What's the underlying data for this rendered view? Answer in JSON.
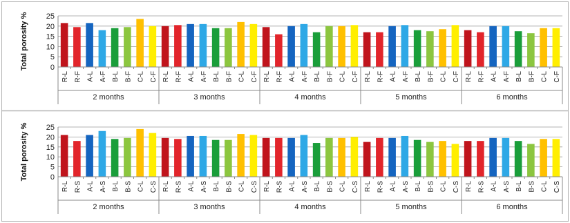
{
  "colors": {
    "R": "#c0141c",
    "red2": "#e2252b",
    "A": "#1565c0",
    "A2": "#2ea8e6",
    "B": "#1a9e3a",
    "B2": "#8cc63f",
    "C": "#ffc000",
    "C2": "#ffee00"
  },
  "chart_data": [
    {
      "type": "bar",
      "ylabel": "Total porosity  %",
      "ylim": [
        0,
        25
      ],
      "yticks": [
        0,
        5,
        10,
        15,
        20,
        25
      ],
      "grid": true,
      "legend": "none",
      "groups": [
        "2 months",
        "3 months",
        "4 months",
        "5 months",
        "6 months"
      ],
      "categories": [
        "R-L",
        "R-F",
        "A-L",
        "A-F",
        "B-L",
        "B-F",
        "C-L",
        "C-F"
      ],
      "bar_colors": [
        "R",
        "red2",
        "A",
        "A2",
        "B",
        "B2",
        "C",
        "C2"
      ],
      "series": [
        {
          "values": [
            21.5,
            19.5,
            21.5,
            18,
            19,
            19.5,
            23.5,
            20
          ]
        },
        {
          "values": [
            20,
            20.5,
            21,
            21,
            19,
            19,
            22,
            21
          ]
        },
        {
          "values": [
            19.5,
            16,
            20,
            21,
            17,
            20,
            20,
            20.5
          ]
        },
        {
          "values": [
            17,
            17,
            20,
            20.5,
            18,
            17.5,
            18.5,
            20.5
          ]
        },
        {
          "values": [
            18,
            17,
            20,
            20,
            17.5,
            16.5,
            19,
            19
          ]
        }
      ]
    },
    {
      "type": "bar",
      "ylabel": "Total porosity  %",
      "ylim": [
        0,
        25
      ],
      "yticks": [
        0,
        5,
        10,
        15,
        20,
        25
      ],
      "grid": true,
      "legend": "none",
      "groups": [
        "2 months",
        "3 months",
        "4 months",
        "5 months",
        "6 months"
      ],
      "categories": [
        "R-L",
        "R-S",
        "A-L",
        "A-S",
        "B-L",
        "B-S",
        "C-L",
        "C-S"
      ],
      "bar_colors": [
        "R",
        "red2",
        "A",
        "A2",
        "B",
        "B2",
        "C",
        "C2"
      ],
      "series": [
        {
          "values": [
            21,
            18,
            21,
            23,
            19,
            19.5,
            24,
            22
          ]
        },
        {
          "values": [
            19.5,
            19,
            20.5,
            20.5,
            18.5,
            18.5,
            21.5,
            21
          ]
        },
        {
          "values": [
            19.5,
            19.5,
            19.5,
            21,
            17,
            19.5,
            19.5,
            20
          ]
        },
        {
          "values": [
            17.5,
            19.5,
            19.5,
            20.5,
            18.5,
            17.5,
            18,
            16.5
          ]
        },
        {
          "values": [
            18,
            18,
            19.5,
            19.5,
            18,
            16.5,
            19,
            19
          ]
        }
      ]
    }
  ]
}
